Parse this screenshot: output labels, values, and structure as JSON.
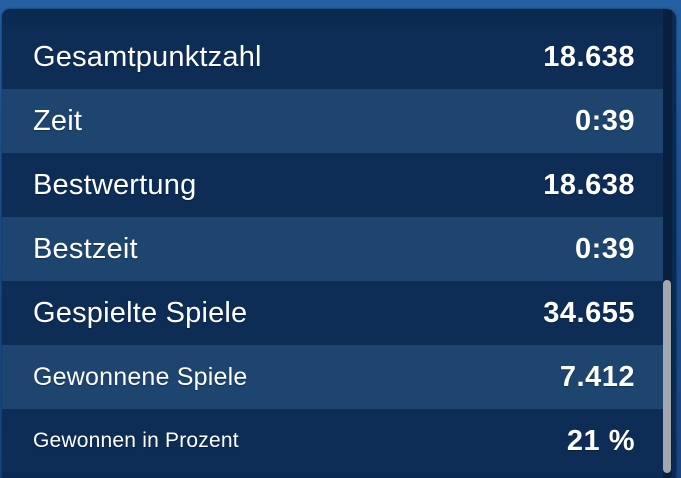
{
  "stats": {
    "rows": [
      {
        "label": "Gesamtpunktzahl",
        "value": "18.638"
      },
      {
        "label": "Zeit",
        "value": "0:39"
      },
      {
        "label": "Bestwertung",
        "value": "18.638"
      },
      {
        "label": "Bestzeit",
        "value": "0:39"
      },
      {
        "label": "Gespielte Spiele",
        "value": "34.655"
      },
      {
        "label": "Gewonnene Spiele",
        "value": "7.412"
      },
      {
        "label": "Gewonnen in Prozent",
        "value": "21 %"
      }
    ]
  },
  "colors": {
    "row_dark": "#0d2d57",
    "row_light": "#1e4570",
    "background": "#1c4f8e",
    "text": "#ffffff",
    "scrollbar_thumb": "#a3a8ae"
  }
}
